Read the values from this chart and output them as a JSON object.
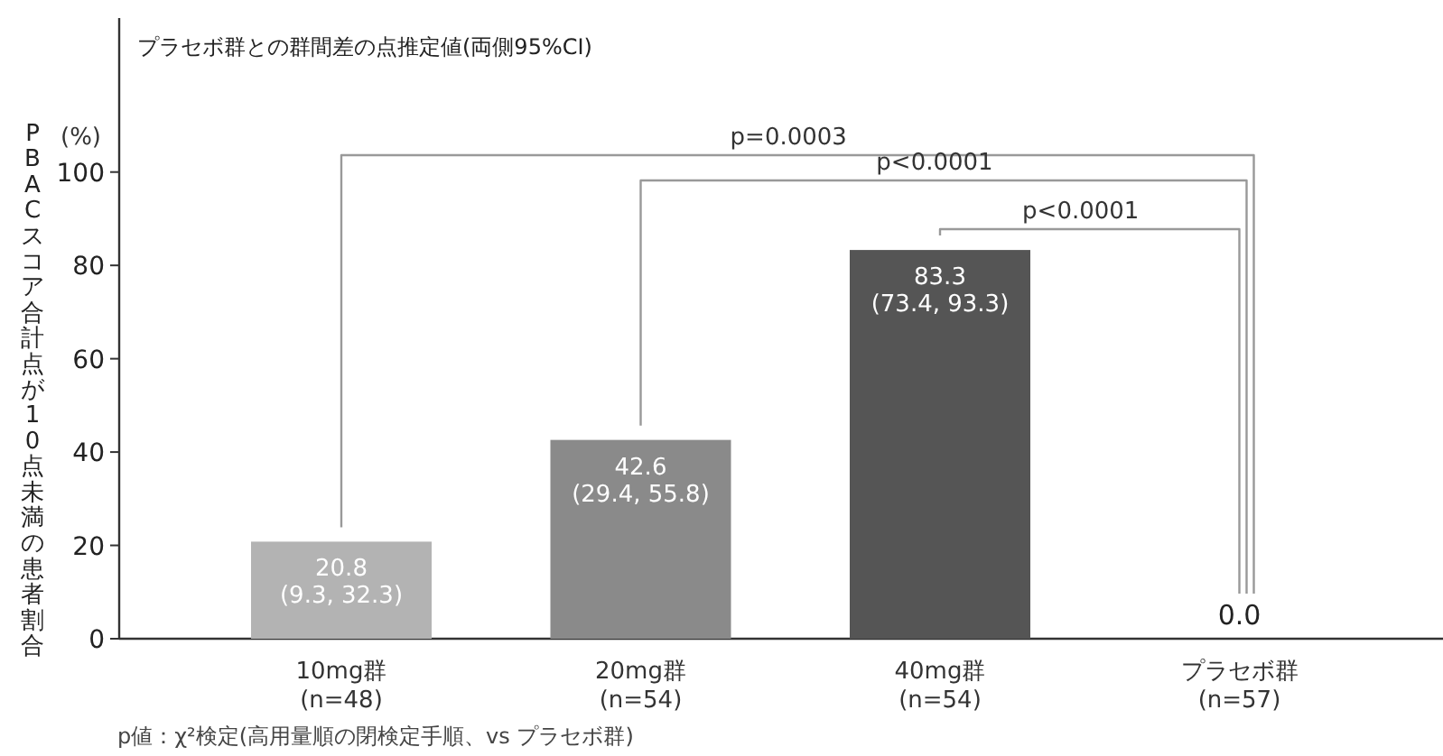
{
  "chart_data": {
    "type": "bar",
    "subtitle": "プラセボ群との群間差の点推定値(両側95%CI)",
    "ylabel": "PBACスコア合計点が10点未満の患者割合",
    "categories": [
      "10mg群\n(n=48)",
      "20mg群\n(n=54)",
      "40mg群\n(n=54)",
      "プラセボ群\n(n=57)"
    ],
    "values": [
      20.8,
      42.6,
      83.3,
      0.0
    ],
    "colors": [
      "#b3b3b3",
      "#8a8a8a",
      "#555555",
      "#555555"
    ],
    "value_labels": [
      "20.8\n(9.3, 32.3)",
      "42.6\n(29.4, 55.8)",
      "83.3\n(73.4, 93.3)",
      "0.0"
    ],
    "ylim": [
      0,
      133
    ],
    "yticks": [
      0,
      20,
      40,
      60,
      80,
      100
    ],
    "grid": false,
    "annotations": [
      "p=0.0003",
      "p<0.0001",
      "p<0.0001",
      "(%)",
      "p値：χ²検定(高用量順の閉検定手順、vs プラセボ群)"
    ]
  }
}
